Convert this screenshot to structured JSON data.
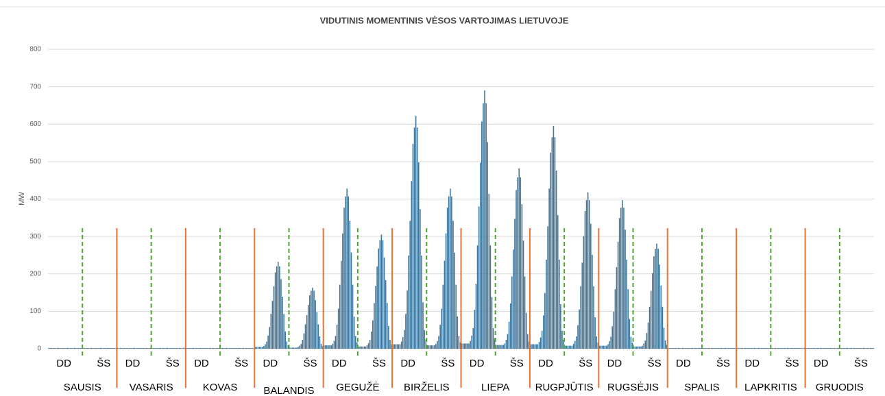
{
  "chart_data": {
    "type": "bar",
    "title": "VIDUTINIS MOMENTINIS VĖSOS VARTOJIMAS LIETUVOJE",
    "y_label": "MW",
    "ylim": [
      0,
      800
    ],
    "yticks": [
      0,
      100,
      200,
      300,
      400,
      500,
      600,
      700,
      800
    ],
    "grid": true,
    "color": "#41779b",
    "day_types": [
      "DD",
      "ŠS"
    ],
    "months": [
      {
        "name": "SAUSIS",
        "values": [
          [
            2,
            2,
            2,
            2,
            2,
            2,
            2,
            2,
            2,
            2,
            2,
            2,
            2,
            2,
            2,
            2,
            2,
            2,
            2,
            2,
            2,
            2,
            2,
            2
          ],
          [
            2,
            2,
            2,
            2,
            2,
            2,
            2,
            2,
            2,
            2,
            2,
            2,
            2,
            2,
            2,
            2,
            2,
            2,
            2,
            2,
            2,
            2,
            2,
            2
          ]
        ]
      },
      {
        "name": "VASARIS",
        "values": [
          [
            2,
            2,
            2,
            2,
            2,
            2,
            2,
            2,
            2,
            2,
            2,
            2,
            2,
            2,
            2,
            2,
            2,
            2,
            2,
            2,
            2,
            2,
            2,
            2
          ],
          [
            2,
            2,
            2,
            2,
            2,
            2,
            2,
            2,
            2,
            2,
            2,
            2,
            2,
            2,
            2,
            2,
            2,
            2,
            2,
            2,
            2,
            2,
            2,
            2
          ]
        ]
      },
      {
        "name": "KOVAS",
        "values": [
          [
            2,
            2,
            2,
            2,
            2,
            2,
            2,
            2,
            2,
            2,
            2,
            2,
            2,
            2,
            2,
            2,
            2,
            2,
            2,
            2,
            2,
            2,
            2,
            2
          ],
          [
            2,
            2,
            2,
            2,
            2,
            2,
            2,
            2,
            2,
            2,
            2,
            2,
            2,
            2,
            2,
            2,
            2,
            2,
            2,
            2,
            2,
            2,
            2,
            2
          ]
        ]
      },
      {
        "name": "BALANDIS",
        "values": [
          [
            5,
            5,
            5,
            5,
            5,
            5,
            7,
            12,
            19,
            35,
            58,
            93,
            128,
            167,
            204,
            220,
            232,
            220,
            186,
            139,
            93,
            46,
            19,
            9
          ],
          [
            3,
            3,
            3,
            3,
            3,
            3,
            5,
            8,
            13,
            24,
            41,
            65,
            90,
            117,
            143,
            155,
            163,
            155,
            130,
            98,
            65,
            33,
            13,
            7
          ]
        ]
      },
      {
        "name": "GEGUŽĖ",
        "values": [
          [
            9,
            9,
            9,
            9,
            9,
            9,
            13,
            21,
            34,
            64,
            107,
            171,
            235,
            308,
            377,
            407,
            428,
            407,
            342,
            257,
            171,
            86,
            34,
            17
          ],
          [
            6,
            6,
            6,
            6,
            6,
            6,
            9,
            15,
            24,
            46,
            76,
            122,
            168,
            220,
            268,
            290,
            305,
            290,
            244,
            183,
            122,
            61,
            24,
            12
          ]
        ]
      },
      {
        "name": "BIRŽELIS",
        "values": [
          [
            12,
            12,
            12,
            12,
            12,
            12,
            19,
            31,
            50,
            93,
            156,
            249,
            342,
            448,
            547,
            591,
            622,
            591,
            498,
            373,
            249,
            124,
            50,
            25
          ],
          [
            9,
            9,
            9,
            9,
            9,
            9,
            13,
            21,
            34,
            64,
            107,
            171,
            235,
            308,
            377,
            407,
            428,
            407,
            342,
            257,
            171,
            86,
            34,
            17
          ]
        ]
      },
      {
        "name": "LIEPA",
        "values": [
          [
            14,
            14,
            14,
            14,
            14,
            14,
            21,
            35,
            55,
            104,
            173,
            276,
            380,
            497,
            607,
            656,
            690,
            656,
            552,
            414,
            276,
            138,
            55,
            28
          ],
          [
            10,
            10,
            10,
            10,
            10,
            10,
            14,
            24,
            39,
            72,
            121,
            193,
            265,
            347,
            424,
            458,
            482,
            458,
            386,
            289,
            193,
            96,
            39,
            19
          ]
        ]
      },
      {
        "name": "RUGPJŪTIS",
        "values": [
          [
            12,
            12,
            12,
            12,
            12,
            12,
            18,
            30,
            48,
            89,
            149,
            238,
            327,
            428,
            524,
            565,
            595,
            565,
            476,
            357,
            238,
            119,
            48,
            24
          ],
          [
            8,
            8,
            8,
            8,
            8,
            8,
            13,
            21,
            33,
            63,
            105,
            167,
            230,
            301,
            368,
            397,
            418,
            397,
            334,
            251,
            167,
            84,
            33,
            17
          ]
        ]
      },
      {
        "name": "RUGSĖJIS",
        "values": [
          [
            8,
            8,
            8,
            8,
            8,
            8,
            12,
            20,
            32,
            60,
            99,
            159,
            218,
            286,
            349,
            377,
            397,
            377,
            318,
            238,
            159,
            79,
            32,
            16
          ],
          [
            6,
            6,
            6,
            6,
            6,
            6,
            8,
            14,
            22,
            42,
            70,
            112,
            155,
            202,
            247,
            267,
            281,
            267,
            225,
            169,
            112,
            56,
            22,
            11
          ]
        ]
      },
      {
        "name": "SPALIS",
        "values": [
          [
            2,
            2,
            2,
            2,
            2,
            2,
            2,
            2,
            2,
            2,
            2,
            2,
            2,
            2,
            2,
            2,
            2,
            2,
            2,
            2,
            2,
            2,
            2,
            2
          ],
          [
            2,
            2,
            2,
            2,
            2,
            2,
            2,
            2,
            2,
            2,
            2,
            2,
            2,
            2,
            2,
            2,
            2,
            2,
            2,
            2,
            2,
            2,
            2,
            2
          ]
        ]
      },
      {
        "name": "LAPKRITIS",
        "values": [
          [
            2,
            2,
            2,
            2,
            2,
            2,
            2,
            2,
            2,
            2,
            2,
            2,
            2,
            2,
            2,
            2,
            2,
            2,
            2,
            2,
            2,
            2,
            2,
            2
          ],
          [
            2,
            2,
            2,
            2,
            2,
            2,
            2,
            2,
            2,
            2,
            2,
            2,
            2,
            2,
            2,
            2,
            2,
            2,
            2,
            2,
            2,
            2,
            2,
            2
          ]
        ]
      },
      {
        "name": "GRUODIS",
        "values": [
          [
            2,
            2,
            2,
            2,
            2,
            2,
            2,
            2,
            2,
            2,
            2,
            2,
            2,
            2,
            2,
            2,
            2,
            2,
            2,
            2,
            2,
            2,
            2,
            2
          ],
          [
            2,
            2,
            2,
            2,
            2,
            2,
            2,
            2,
            2,
            2,
            2,
            2,
            2,
            2,
            2,
            2,
            2,
            2,
            2,
            2,
            2,
            2,
            2,
            2
          ]
        ]
      }
    ]
  }
}
